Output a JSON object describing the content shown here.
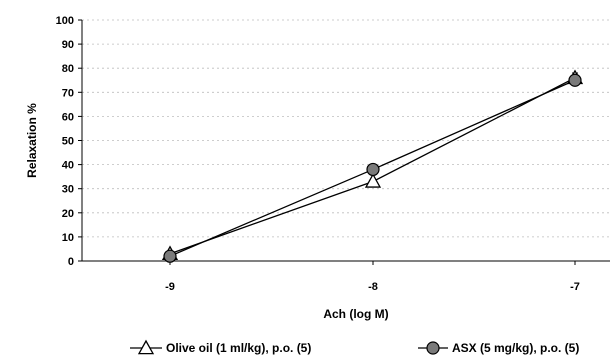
{
  "chart_data": {
    "type": "line",
    "xlabel": "Ach (log M)",
    "ylabel": "Relaxation %",
    "categories": [
      "-9",
      "-8",
      "-7"
    ],
    "ylim": [
      0,
      100
    ],
    "yticks": [
      "0",
      "10",
      "20",
      "30",
      "40",
      "50",
      "60",
      "70",
      "80",
      "90",
      "100"
    ],
    "grid": "horizontal dashed",
    "legend_position": "bottom",
    "series": [
      {
        "name": "Olive oil (1 ml/kg), p.o. (5)",
        "marker": "open-triangle",
        "values": [
          3,
          33,
          76
        ],
        "errors": [
          0,
          0,
          2
        ]
      },
      {
        "name": "ASX (5 mg/kg), p.o. (5)",
        "marker": "filled-circle",
        "values": [
          2,
          38,
          75
        ],
        "errors": [
          0,
          0,
          1
        ]
      }
    ]
  }
}
